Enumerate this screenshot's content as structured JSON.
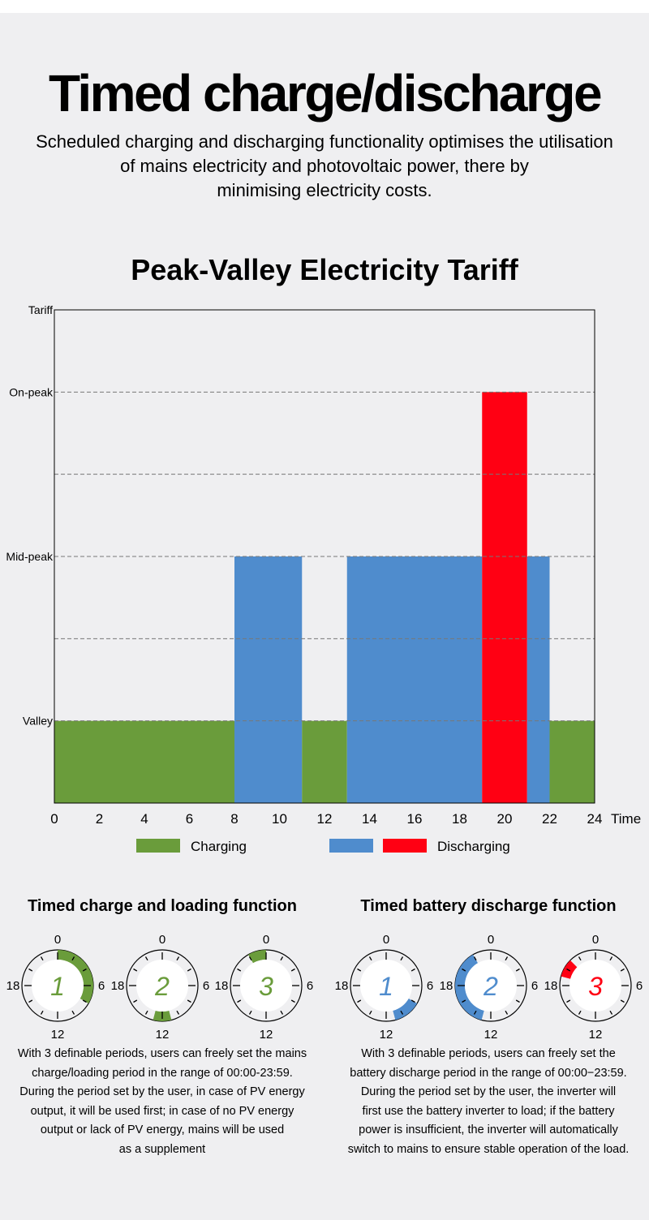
{
  "header": {
    "title": "Timed charge/discharge",
    "subtitle_lines": [
      "Scheduled charging and discharging functionality optimises the utilisation",
      "of mains electricity and photovoltaic power, there by",
      "minimising electricity costs."
    ]
  },
  "chart_data": {
    "type": "bar",
    "title": "Peak-Valley Electricity Tariff",
    "xlabel": "Time",
    "ylabel": "Tariff",
    "xlim": [
      0,
      24
    ],
    "ylim": [
      0,
      6
    ],
    "xticks": [
      0,
      2,
      4,
      6,
      8,
      10,
      12,
      14,
      16,
      18,
      20,
      22,
      24
    ],
    "yticks": [
      {
        "label": "Valley",
        "value": 1
      },
      {
        "label": "Mid-peak",
        "value": 3
      },
      {
        "label": "On-peak",
        "value": 5
      }
    ],
    "grid_values": [
      1,
      2,
      3,
      4,
      5
    ],
    "segments": [
      {
        "start": 0,
        "end": 8,
        "value": 1,
        "series": "Charging"
      },
      {
        "start": 8,
        "end": 11,
        "value": 3,
        "series": "Discharging"
      },
      {
        "start": 11,
        "end": 13,
        "value": 1,
        "series": "Charging"
      },
      {
        "start": 13,
        "end": 19,
        "value": 3,
        "series": "Discharging"
      },
      {
        "start": 19,
        "end": 21,
        "value": 5,
        "series": "Discharging-peak"
      },
      {
        "start": 21,
        "end": 22,
        "value": 3,
        "series": "Discharging"
      },
      {
        "start": 22,
        "end": 24,
        "value": 1,
        "series": "Charging"
      }
    ],
    "legend": [
      {
        "label": "Charging",
        "colors": [
          "#6a9c3b"
        ]
      },
      {
        "label": "Discharging",
        "colors": [
          "#4f8ccd",
          "#ff0013"
        ]
      }
    ],
    "legend_placement": "bottom"
  },
  "colors": {
    "green": "#6a9c3b",
    "blue": "#4f8ccd",
    "red": "#ff0013"
  },
  "charge": {
    "title": "Timed charge and loading function",
    "clocks": [
      {
        "n": "1",
        "start": 0,
        "end": 8
      },
      {
        "n": "2",
        "start": 11,
        "end": 13
      },
      {
        "n": "3",
        "start": 22,
        "end": 24
      }
    ],
    "desc": [
      "With 3 definable periods, users can freely set the mains",
      "charge/loading period in the range of 00:00-23:59.",
      "During the period set by the user, in case of PV energy",
      "output, it will be used first; in case of no PV energy",
      "output or lack of PV energy, mains will be used",
      "as a supplement"
    ]
  },
  "discharge": {
    "title": "Timed battery discharge function",
    "clocks": [
      {
        "n": "1",
        "start": 8,
        "end": 11,
        "color": "blue"
      },
      {
        "n": "2",
        "start": 13,
        "end": 22,
        "color": "blue"
      },
      {
        "n": "3",
        "start": 19,
        "end": 21,
        "color": "red"
      }
    ],
    "desc": [
      "With 3 definable periods, users can freely set the",
      "battery discharge period in the range of 00:00−23:59.",
      "During the period set by the user, the inverter will",
      "first use the battery inverter to load; if the battery",
      "power is insufficient, the inverter will automatically",
      "switch to mains to ensure stable operation of the load."
    ]
  },
  "clock_labels": [
    "0",
    "6",
    "12",
    "18"
  ]
}
